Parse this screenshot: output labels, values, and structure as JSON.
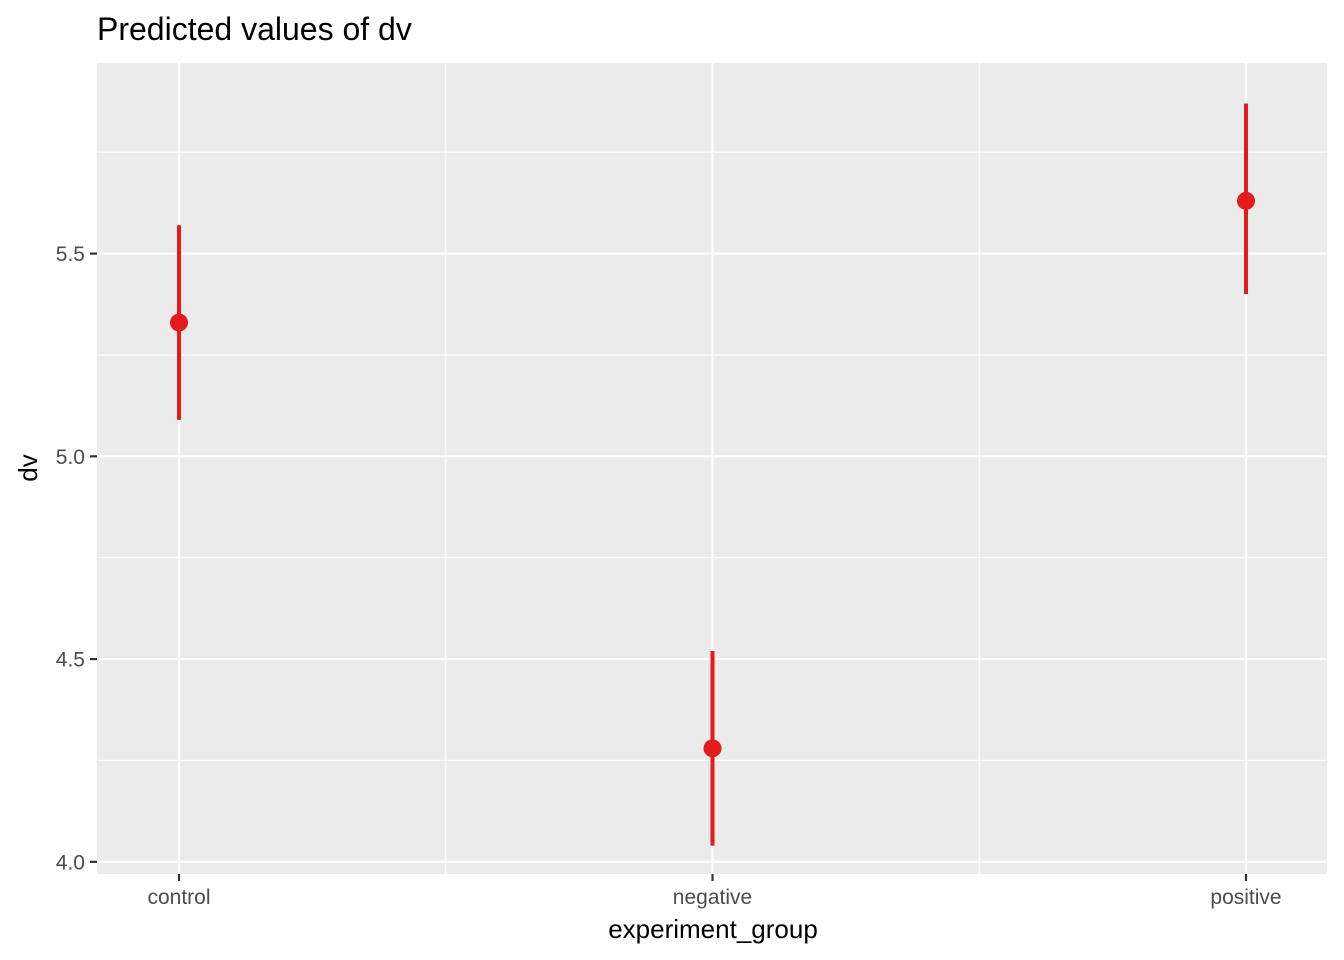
{
  "chart_data": {
    "type": "scatter",
    "title": "Predicted values of dv",
    "xlabel": "experiment_group",
    "ylabel": "dv",
    "categories": [
      "control",
      "negative",
      "positive"
    ],
    "series": [
      {
        "values": [
          5.33,
          4.28,
          5.63
        ],
        "ci_low": [
          5.09,
          4.04,
          5.4
        ],
        "ci_high": [
          5.57,
          4.52,
          5.87
        ]
      }
    ],
    "ylim": [
      3.97,
      5.97
    ],
    "yticks": [
      4.0,
      4.5,
      5.0,
      5.5
    ],
    "ytick_labels": [
      "4.0",
      "4.5",
      "5.0",
      "5.5"
    ],
    "grid": true,
    "legend": "none",
    "colors": {
      "point": "#e41a1c",
      "panel": "#ebebeb",
      "grid": "#ffffff",
      "tick_text": "#4d4d4d"
    }
  }
}
